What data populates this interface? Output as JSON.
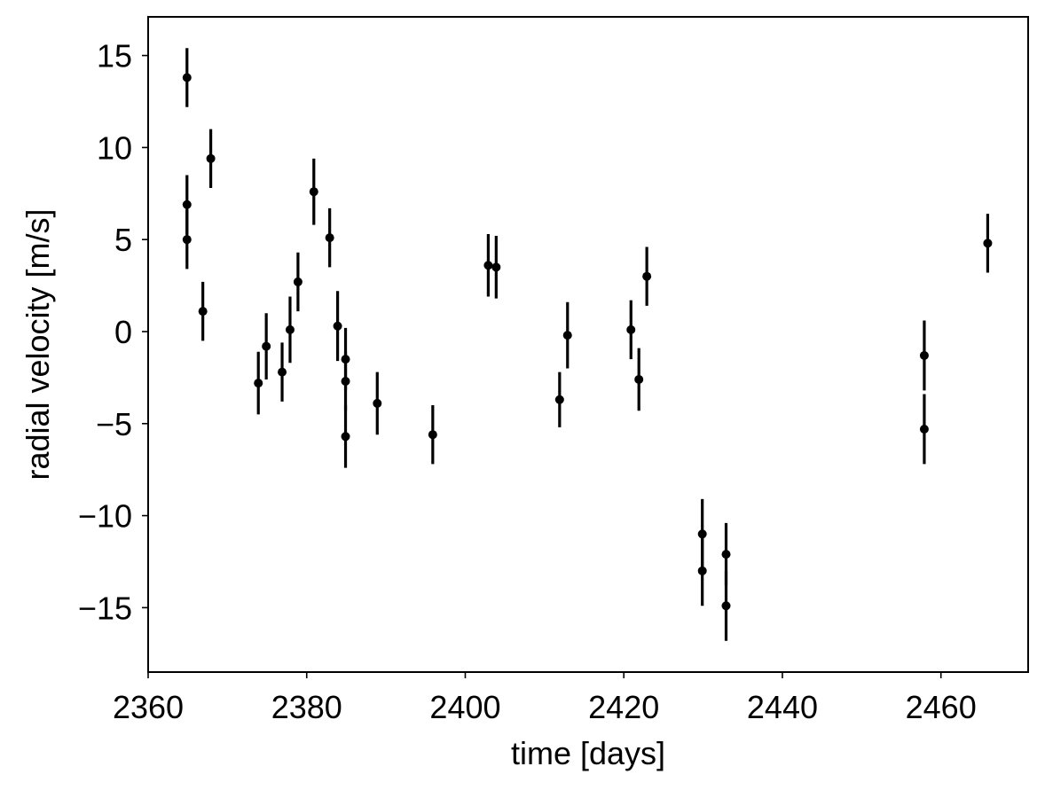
{
  "chart_data": {
    "type": "scatter",
    "title": "",
    "xlabel": "time [days]",
    "ylabel": "radial velocity [m/s]",
    "xlim": [
      2360,
      2471
    ],
    "ylim": [
      -18.5,
      17.1
    ],
    "xticks": [
      2360,
      2380,
      2400,
      2420,
      2440,
      2460
    ],
    "xtick_labels": [
      "2360",
      "2380",
      "2400",
      "2420",
      "2440",
      "2460"
    ],
    "yticks": [
      -15,
      -10,
      -5,
      0,
      5,
      10,
      15
    ],
    "ytick_labels": [
      "−15",
      "−10",
      "−5",
      "0",
      "5",
      "10",
      "15"
    ],
    "grid": false,
    "legend": "none",
    "color": "#000000",
    "points": [
      {
        "x": 2364.9,
        "y": 13.8,
        "err": 1.6
      },
      {
        "x": 2364.9,
        "y": 6.9,
        "err": 1.6
      },
      {
        "x": 2364.9,
        "y": 5.0,
        "err": 1.6
      },
      {
        "x": 2366.9,
        "y": 1.1,
        "err": 1.6
      },
      {
        "x": 2367.9,
        "y": 9.4,
        "err": 1.6
      },
      {
        "x": 2373.9,
        "y": -2.8,
        "err": 1.7
      },
      {
        "x": 2374.9,
        "y": -0.8,
        "err": 1.8
      },
      {
        "x": 2376.9,
        "y": -2.2,
        "err": 1.6
      },
      {
        "x": 2377.9,
        "y": 0.1,
        "err": 1.8
      },
      {
        "x": 2378.9,
        "y": 2.7,
        "err": 1.6
      },
      {
        "x": 2380.9,
        "y": 7.6,
        "err": 1.8
      },
      {
        "x": 2382.9,
        "y": 5.1,
        "err": 1.6
      },
      {
        "x": 2383.9,
        "y": 0.3,
        "err": 1.9
      },
      {
        "x": 2384.9,
        "y": -1.5,
        "err": 1.7
      },
      {
        "x": 2384.9,
        "y": -2.7,
        "err": 1.6
      },
      {
        "x": 2384.9,
        "y": -5.7,
        "err": 1.7
      },
      {
        "x": 2388.9,
        "y": -3.9,
        "err": 1.7
      },
      {
        "x": 2395.9,
        "y": -5.6,
        "err": 1.6
      },
      {
        "x": 2402.9,
        "y": 3.6,
        "err": 1.7
      },
      {
        "x": 2403.9,
        "y": 3.5,
        "err": 1.7
      },
      {
        "x": 2411.9,
        "y": -3.7,
        "err": 1.5
      },
      {
        "x": 2412.9,
        "y": -0.2,
        "err": 1.8
      },
      {
        "x": 2420.9,
        "y": 0.1,
        "err": 1.6
      },
      {
        "x": 2421.9,
        "y": -2.6,
        "err": 1.7
      },
      {
        "x": 2422.9,
        "y": 3.0,
        "err": 1.6
      },
      {
        "x": 2429.9,
        "y": -11.0,
        "err": 1.9
      },
      {
        "x": 2429.9,
        "y": -13.0,
        "err": 1.9
      },
      {
        "x": 2432.9,
        "y": -12.1,
        "err": 1.7
      },
      {
        "x": 2432.9,
        "y": -14.9,
        "err": 1.9
      },
      {
        "x": 2457.9,
        "y": -1.3,
        "err": 1.9
      },
      {
        "x": 2457.9,
        "y": -5.3,
        "err": 1.9
      },
      {
        "x": 2465.9,
        "y": 4.8,
        "err": 1.6
      }
    ]
  }
}
